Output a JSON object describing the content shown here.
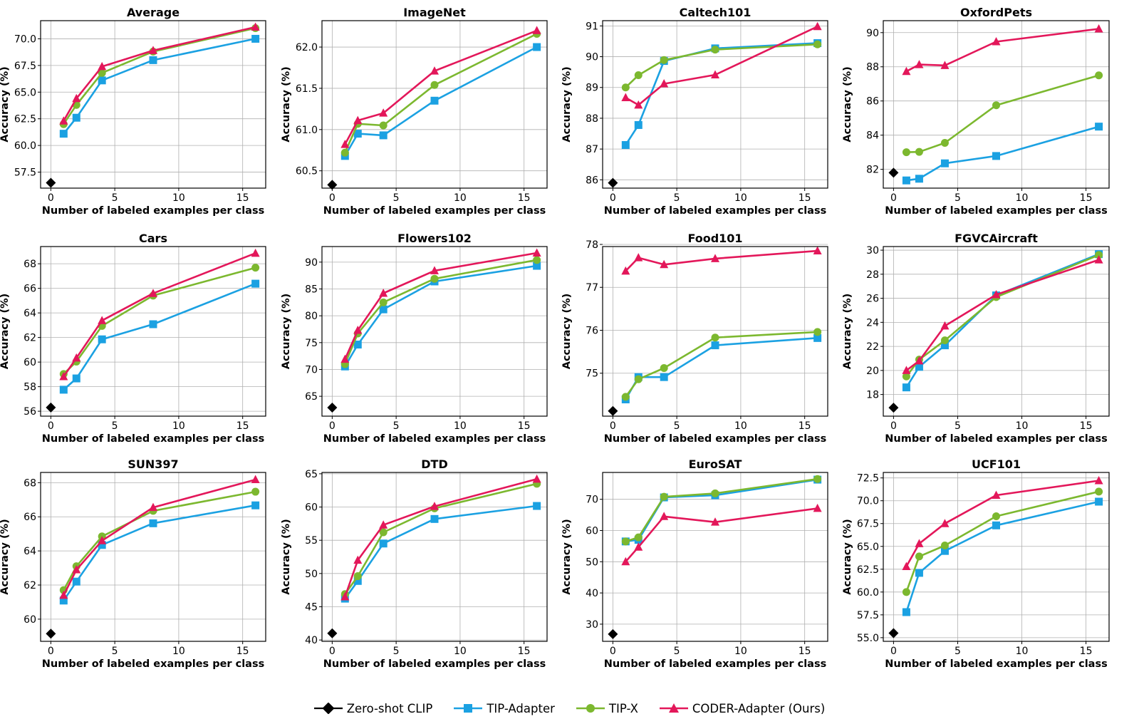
{
  "legend": {
    "items": [
      {
        "label": "Zero-shot CLIP",
        "color": "#000000",
        "marker": "diamond"
      },
      {
        "label": "TIP-Adapter",
        "color": "#1ba1e2",
        "marker": "square"
      },
      {
        "label": "TIP-X",
        "color": "#7cb82f",
        "marker": "circle"
      },
      {
        "label": "CODER-Adapter (Ours)",
        "color": "#e3175a",
        "marker": "triangle"
      }
    ]
  },
  "chart_data": [
    {
      "type": "line",
      "title": "Average",
      "xlabel": "Number of labeled examples per class",
      "ylabel": "Accuracy (%)",
      "xlim": [
        -0.8,
        16.8
      ],
      "ylim": [
        56.0,
        71.7
      ],
      "xticks": [
        0,
        5,
        10,
        15
      ],
      "yticks": [
        57.5,
        60.0,
        62.5,
        65.0,
        67.5,
        70.0
      ],
      "ytick_decimals": 1,
      "zero_shot": {
        "x": 0,
        "y": 56.5
      },
      "series": [
        {
          "name": "TIP-Adapter",
          "x": [
            1,
            2,
            4,
            8,
            16
          ],
          "values": [
            61.1,
            62.6,
            66.1,
            68.0,
            70.0
          ]
        },
        {
          "name": "TIP-X",
          "x": [
            1,
            2,
            4,
            8,
            16
          ],
          "values": [
            62.0,
            63.8,
            66.8,
            68.8,
            71.0
          ]
        },
        {
          "name": "CODER-Adapter (Ours)",
          "x": [
            1,
            2,
            4,
            8,
            16
          ],
          "values": [
            62.3,
            64.4,
            67.4,
            68.9,
            71.1
          ]
        }
      ]
    },
    {
      "type": "line",
      "title": "ImageNet",
      "xlabel": "Number of labeled examples per class",
      "ylabel": "Accuracy (%)",
      "xlim": [
        -0.8,
        16.8
      ],
      "ylim": [
        60.29,
        62.32
      ],
      "xticks": [
        0,
        5,
        10,
        15
      ],
      "yticks": [
        60.5,
        61.0,
        61.5,
        62.0
      ],
      "ytick_decimals": 1,
      "zero_shot": {
        "x": 0,
        "y": 60.33
      },
      "series": [
        {
          "name": "TIP-Adapter",
          "x": [
            1,
            2,
            4,
            8,
            16
          ],
          "values": [
            60.68,
            60.95,
            60.93,
            61.35,
            62.0
          ]
        },
        {
          "name": "TIP-X",
          "x": [
            1,
            2,
            4,
            8,
            16
          ],
          "values": [
            60.72,
            61.07,
            61.05,
            61.54,
            62.16
          ]
        },
        {
          "name": "CODER-Adapter (Ours)",
          "x": [
            1,
            2,
            4,
            8,
            16
          ],
          "values": [
            60.82,
            61.11,
            61.2,
            61.71,
            62.2
          ]
        }
      ]
    },
    {
      "type": "line",
      "title": "Caltech101",
      "xlabel": "Number of labeled examples per class",
      "ylabel": "Accuracy (%)",
      "xlim": [
        -0.8,
        16.8
      ],
      "ylim": [
        85.73,
        91.17
      ],
      "xticks": [
        0,
        5,
        10,
        15
      ],
      "yticks": [
        86,
        87,
        88,
        89,
        90,
        91
      ],
      "ytick_decimals": 0,
      "zero_shot": {
        "x": 0,
        "y": 85.9
      },
      "series": [
        {
          "name": "TIP-Adapter",
          "x": [
            1,
            2,
            4,
            8,
            16
          ],
          "values": [
            87.13,
            87.78,
            89.86,
            90.27,
            90.44
          ]
        },
        {
          "name": "TIP-X",
          "x": [
            1,
            2,
            4,
            8,
            16
          ],
          "values": [
            89.0,
            89.4,
            89.89,
            90.23,
            90.4
          ]
        },
        {
          "name": "CODER-Adapter (Ours)",
          "x": [
            1,
            2,
            4,
            8,
            16
          ],
          "values": [
            88.67,
            88.43,
            89.12,
            89.41,
            90.98
          ]
        }
      ]
    },
    {
      "type": "line",
      "title": "OxfordPets",
      "xlabel": "Number of labeled examples per class",
      "ylabel": "Accuracy (%)",
      "xlim": [
        -0.8,
        16.8
      ],
      "ylim": [
        80.9,
        90.7
      ],
      "xticks": [
        0,
        5,
        10,
        15
      ],
      "yticks": [
        82,
        84,
        86,
        88,
        90
      ],
      "ytick_decimals": 0,
      "zero_shot": {
        "x": 0,
        "y": 81.8
      },
      "series": [
        {
          "name": "TIP-Adapter",
          "x": [
            1,
            2,
            4,
            8,
            16
          ],
          "values": [
            81.35,
            81.45,
            82.35,
            82.78,
            84.5
          ]
        },
        {
          "name": "TIP-X",
          "x": [
            1,
            2,
            4,
            8,
            16
          ],
          "values": [
            83.0,
            83.02,
            83.55,
            85.75,
            87.5
          ]
        },
        {
          "name": "CODER-Adapter (Ours)",
          "x": [
            1,
            2,
            4,
            8,
            16
          ],
          "values": [
            87.73,
            88.13,
            88.08,
            89.47,
            90.22
          ]
        }
      ]
    },
    {
      "type": "line",
      "title": "Cars",
      "xlabel": "Number of labeled examples per class",
      "ylabel": "Accuracy (%)",
      "xlim": [
        -0.8,
        16.8
      ],
      "ylim": [
        55.6,
        69.4
      ],
      "xticks": [
        0,
        5,
        10,
        15
      ],
      "yticks": [
        56,
        58,
        60,
        62,
        64,
        66,
        68
      ],
      "ytick_decimals": 0,
      "zero_shot": {
        "x": 0,
        "y": 56.3
      },
      "series": [
        {
          "name": "TIP-Adapter",
          "x": [
            1,
            2,
            4,
            8,
            16
          ],
          "values": [
            57.75,
            58.67,
            61.85,
            63.08,
            66.38
          ]
        },
        {
          "name": "TIP-X",
          "x": [
            1,
            2,
            4,
            8,
            16
          ],
          "values": [
            59.03,
            60.04,
            62.94,
            65.41,
            67.68
          ]
        },
        {
          "name": "CODER-Adapter (Ours)",
          "x": [
            1,
            2,
            4,
            8,
            16
          ],
          "values": [
            58.82,
            60.33,
            63.38,
            65.59,
            68.86
          ]
        }
      ]
    },
    {
      "type": "line",
      "title": "Flowers102",
      "xlabel": "Number of labeled examples per class",
      "ylabel": "Accuracy (%)",
      "xlim": [
        -0.8,
        16.8
      ],
      "ylim": [
        61.3,
        92.9
      ],
      "xticks": [
        0,
        5,
        10,
        15
      ],
      "yticks": [
        65,
        70,
        75,
        80,
        85,
        90
      ],
      "ytick_decimals": 0,
      "zero_shot": {
        "x": 0,
        "y": 62.9
      },
      "series": [
        {
          "name": "TIP-Adapter",
          "x": [
            1,
            2,
            4,
            8,
            16
          ],
          "values": [
            70.56,
            74.64,
            81.2,
            86.4,
            89.31
          ]
        },
        {
          "name": "TIP-X",
          "x": [
            1,
            2,
            4,
            8,
            16
          ],
          "values": [
            71.0,
            76.7,
            82.5,
            86.9,
            90.4
          ]
        },
        {
          "name": "CODER-Adapter (Ours)",
          "x": [
            1,
            2,
            4,
            8,
            16
          ],
          "values": [
            71.9,
            77.3,
            84.2,
            88.4,
            91.7
          ]
        }
      ]
    },
    {
      "type": "line",
      "title": "Food101",
      "xlabel": "Number of labeled examples per class",
      "ylabel": "Accuracy (%)",
      "xlim": [
        -0.8,
        16.8
      ],
      "ylim": [
        74.0,
        77.95
      ],
      "xticks": [
        0,
        5,
        10,
        15
      ],
      "yticks": [
        75,
        76,
        77,
        78
      ],
      "ytick_decimals": 0,
      "zero_shot": {
        "x": 0,
        "y": 74.12
      },
      "series": [
        {
          "name": "TIP-Adapter",
          "x": [
            1,
            2,
            4,
            8,
            16
          ],
          "values": [
            74.39,
            74.91,
            74.91,
            75.65,
            75.82
          ]
        },
        {
          "name": "TIP-X",
          "x": [
            1,
            2,
            4,
            8,
            16
          ],
          "values": [
            74.45,
            74.86,
            75.12,
            75.83,
            75.96
          ]
        },
        {
          "name": "CODER-Adapter (Ours)",
          "x": [
            1,
            2,
            4,
            8,
            16
          ],
          "values": [
            77.38,
            77.69,
            77.53,
            77.67,
            77.85
          ]
        }
      ]
    },
    {
      "type": "line",
      "title": "FGVCAircraft",
      "xlabel": "Number of labeled examples per class",
      "ylabel": "Accuracy (%)",
      "xlim": [
        -0.8,
        16.8
      ],
      "ylim": [
        16.2,
        30.3
      ],
      "xticks": [
        0,
        5,
        10,
        15
      ],
      "yticks": [
        18,
        20,
        22,
        24,
        26,
        28,
        30
      ],
      "ytick_decimals": 0,
      "zero_shot": {
        "x": 0,
        "y": 16.9
      },
      "series": [
        {
          "name": "TIP-Adapter",
          "x": [
            1,
            2,
            4,
            8,
            16
          ],
          "values": [
            18.59,
            20.3,
            22.09,
            26.24,
            29.67
          ]
        },
        {
          "name": "TIP-X",
          "x": [
            1,
            2,
            4,
            8,
            16
          ],
          "values": [
            19.5,
            20.9,
            22.5,
            26.1,
            29.6
          ]
        },
        {
          "name": "CODER-Adapter (Ours)",
          "x": [
            1,
            2,
            4,
            8,
            16
          ],
          "values": [
            20.0,
            20.8,
            23.7,
            26.3,
            29.2
          ]
        }
      ]
    },
    {
      "type": "line",
      "title": "SUN397",
      "xlabel": "Number of labeled examples per class",
      "ylabel": "Accuracy (%)",
      "xlim": [
        -0.8,
        16.8
      ],
      "ylim": [
        58.7,
        68.6
      ],
      "xticks": [
        0,
        5,
        10,
        15
      ],
      "yticks": [
        60,
        62,
        64,
        66,
        68
      ],
      "ytick_decimals": 0,
      "zero_shot": {
        "x": 0,
        "y": 59.15
      },
      "series": [
        {
          "name": "TIP-Adapter",
          "x": [
            1,
            2,
            4,
            8,
            16
          ],
          "values": [
            61.09,
            62.2,
            64.35,
            65.62,
            66.67
          ]
        },
        {
          "name": "TIP-X",
          "x": [
            1,
            2,
            4,
            8,
            16
          ],
          "values": [
            61.7,
            63.1,
            64.85,
            66.35,
            67.47
          ]
        },
        {
          "name": "CODER-Adapter (Ours)",
          "x": [
            1,
            2,
            4,
            8,
            16
          ],
          "values": [
            61.4,
            62.9,
            64.6,
            66.55,
            68.18
          ]
        }
      ]
    },
    {
      "type": "line",
      "title": "DTD",
      "xlabel": "Number of labeled examples per class",
      "ylabel": "Accuracy (%)",
      "xlim": [
        -0.8,
        16.8
      ],
      "ylim": [
        39.8,
        65.2
      ],
      "xticks": [
        0,
        5,
        10,
        15
      ],
      "yticks": [
        40,
        45,
        50,
        55,
        60,
        65
      ],
      "ytick_decimals": 0,
      "zero_shot": {
        "x": 0,
        "y": 41.0
      },
      "series": [
        {
          "name": "TIP-Adapter",
          "x": [
            1,
            2,
            4,
            8,
            16
          ],
          "values": [
            46.22,
            48.88,
            54.51,
            58.2,
            60.16
          ]
        },
        {
          "name": "TIP-X",
          "x": [
            1,
            2,
            4,
            8,
            16
          ],
          "values": [
            46.9,
            49.6,
            56.2,
            59.8,
            63.5
          ]
        },
        {
          "name": "CODER-Adapter (Ours)",
          "x": [
            1,
            2,
            4,
            8,
            16
          ],
          "values": [
            46.5,
            52.0,
            57.3,
            60.1,
            64.2
          ]
        }
      ]
    },
    {
      "type": "line",
      "title": "EuroSAT",
      "xlabel": "Number of labeled examples per class",
      "ylabel": "Accuracy (%)",
      "xlim": [
        -0.8,
        16.8
      ],
      "ylim": [
        24.5,
        78.6
      ],
      "xticks": [
        0,
        5,
        10,
        15
      ],
      "yticks": [
        30,
        40,
        50,
        60,
        70
      ],
      "ytick_decimals": 0,
      "zero_shot": {
        "x": 0,
        "y": 26.8
      },
      "series": [
        {
          "name": "TIP-Adapter",
          "x": [
            1,
            2,
            4,
            8,
            16
          ],
          "values": [
            56.5,
            57.0,
            70.6,
            71.3,
            76.3
          ]
        },
        {
          "name": "TIP-X",
          "x": [
            1,
            2,
            4,
            8,
            16
          ],
          "values": [
            56.5,
            57.8,
            70.8,
            71.9,
            76.5
          ]
        },
        {
          "name": "CODER-Adapter (Ours)",
          "x": [
            1,
            2,
            4,
            8,
            16
          ],
          "values": [
            50.0,
            54.7,
            64.5,
            62.7,
            67.1
          ]
        }
      ]
    },
    {
      "type": "line",
      "title": "UCF101",
      "xlabel": "Number of labeled examples per class",
      "ylabel": "Accuracy (%)",
      "xlim": [
        -0.8,
        16.8
      ],
      "ylim": [
        54.6,
        73.1
      ],
      "xticks": [
        0,
        5,
        10,
        15
      ],
      "yticks": [
        55.0,
        57.5,
        60.0,
        62.5,
        65.0,
        67.5,
        70.0,
        72.5
      ],
      "ytick_decimals": 1,
      "zero_shot": {
        "x": 0,
        "y": 55.5
      },
      "series": [
        {
          "name": "TIP-Adapter",
          "x": [
            1,
            2,
            4,
            8,
            16
          ],
          "values": [
            57.8,
            62.1,
            64.5,
            67.3,
            69.9
          ]
        },
        {
          "name": "TIP-X",
          "x": [
            1,
            2,
            4,
            8,
            16
          ],
          "values": [
            60.0,
            63.9,
            65.1,
            68.3,
            71.0
          ]
        },
        {
          "name": "CODER-Adapter (Ours)",
          "x": [
            1,
            2,
            4,
            8,
            16
          ],
          "values": [
            62.8,
            65.3,
            67.5,
            70.6,
            72.2
          ]
        }
      ]
    }
  ]
}
